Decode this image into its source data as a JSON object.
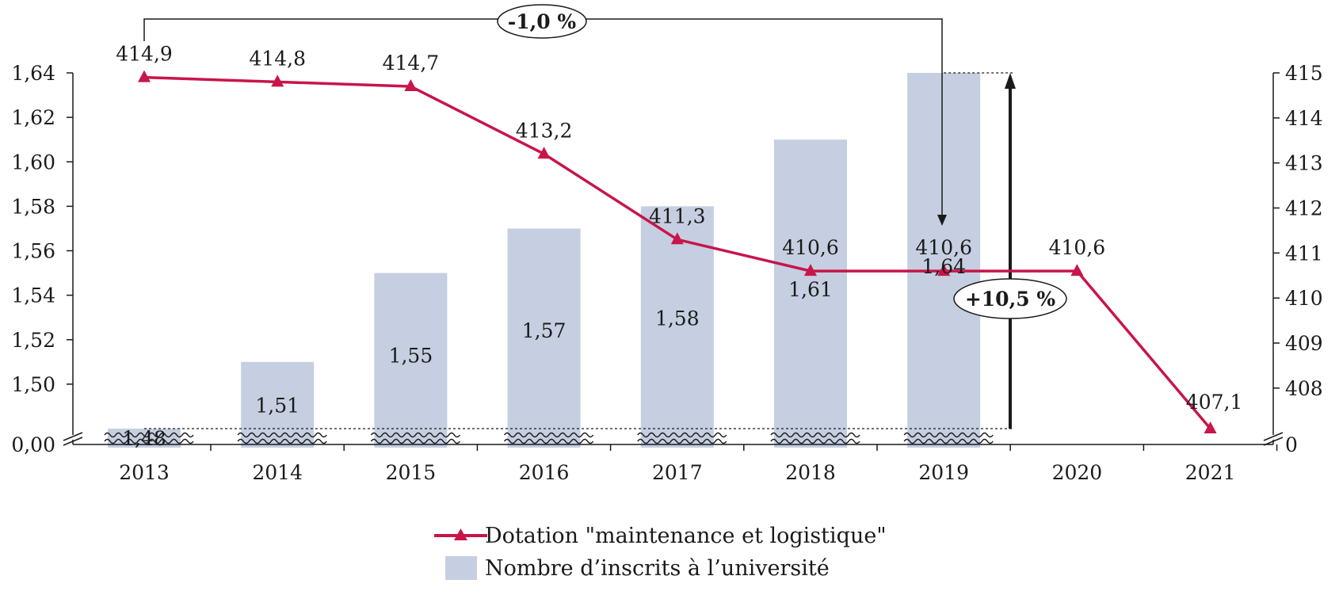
{
  "chart_data": {
    "type": "bar+line",
    "categories": [
      "2013",
      "2014",
      "2015",
      "2016",
      "2017",
      "2018",
      "2019",
      "2020",
      "2021"
    ],
    "bar_series": {
      "name": "Nombre d’inscrits à l’université",
      "values": [
        1.48,
        1.51,
        1.55,
        1.57,
        1.58,
        1.61,
        1.64,
        null,
        null
      ],
      "labels": [
        "1,48",
        "1,51",
        "1,55",
        "1,57",
        "1,58",
        "1,61",
        "1,64",
        "",
        ""
      ],
      "color": "#c5cfe1"
    },
    "line_series": {
      "name": "Dotation \"maintenance et logistique\"",
      "values": [
        414.9,
        414.8,
        414.7,
        413.2,
        411.3,
        410.6,
        410.6,
        410.6,
        407.1
      ],
      "labels": [
        "414,9",
        "414,8",
        "414,7",
        "413,2",
        "411,3",
        "410,6",
        "410,6",
        "410,6",
        "407,1"
      ],
      "color": "#c8154a",
      "marker": "triangle"
    },
    "y_left": {
      "ticks": [
        1.5,
        1.52,
        1.54,
        1.56,
        1.58,
        1.6,
        1.62,
        1.64
      ],
      "tick_labels": [
        "1,50",
        "1,52",
        "1,54",
        "1,56",
        "1,58",
        "1,60",
        "1,62",
        "1,64"
      ],
      "break_label": "0,00",
      "range": [
        1.48,
        1.64
      ]
    },
    "y_right": {
      "ticks": [
        408,
        409,
        410,
        411,
        412,
        413,
        414,
        415
      ],
      "tick_labels": [
        "408",
        "409",
        "410",
        "411",
        "412",
        "413",
        "414",
        "415"
      ],
      "break_label": "0",
      "range": [
        407.1,
        415
      ]
    },
    "axis_break": true,
    "annotations": [
      {
        "text": "-1,0 %",
        "from": "2013",
        "to": "2019"
      },
      {
        "text": "+10,5 %",
        "from": "2013",
        "to": "2019"
      }
    ],
    "grid": false,
    "legend_position": "bottom"
  }
}
